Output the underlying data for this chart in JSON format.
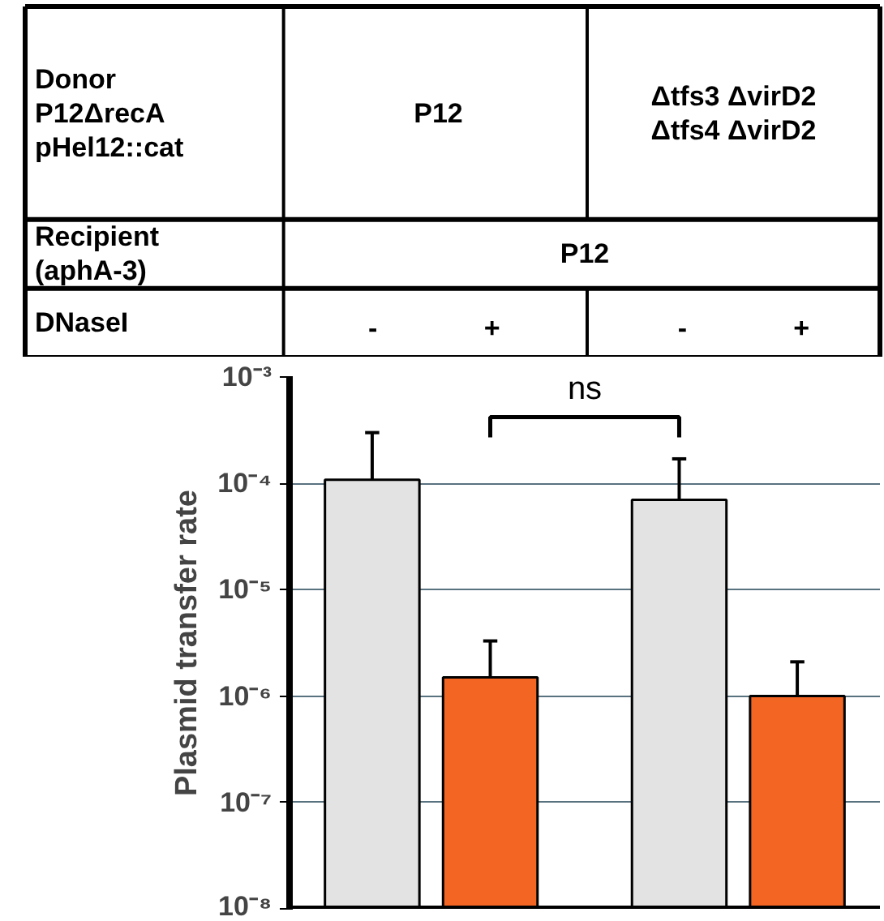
{
  "chart_data": {
    "type": "bar",
    "ylabel": "Plasmid transfer rate",
    "categories": [
      "-",
      "+",
      "-",
      "+"
    ],
    "values": [
      0.000108,
      1.5e-06,
      7e-05,
      1e-06
    ],
    "errors": [
      [
        0.000108,
        0.0003
      ],
      [
        1.5e-06,
        3.3e-06
      ],
      [
        7e-05,
        0.00017
      ],
      [
        1e-06,
        2.1e-06
      ]
    ],
    "colors": [
      "#e3e3e3",
      "#f26522",
      "#e3e3e3",
      "#f26522"
    ],
    "log": "y",
    "ylim": [
      1e-08,
      0.001
    ],
    "yticks": [
      {
        "value": 1e-08,
        "label": "10⁻⁸"
      },
      {
        "value": 1e-07,
        "label": "10⁻⁷"
      },
      {
        "value": 1e-06,
        "label": "10⁻⁶"
      },
      {
        "value": 1e-05,
        "label": "10⁻⁵"
      },
      {
        "value": 0.0001,
        "label": "10⁻⁴"
      },
      {
        "value": 0.001,
        "label": "10⁻³"
      }
    ],
    "grid": "y",
    "annotations": [
      "Donor\nP12ΔrecA\npHel12::cat",
      "P12",
      "Δtfs3 ΔvirD2\nΔtfs4 ΔvirD2",
      "Recipient\n(aphA-3)",
      "P12",
      "DNaseI",
      "ns"
    ]
  }
}
